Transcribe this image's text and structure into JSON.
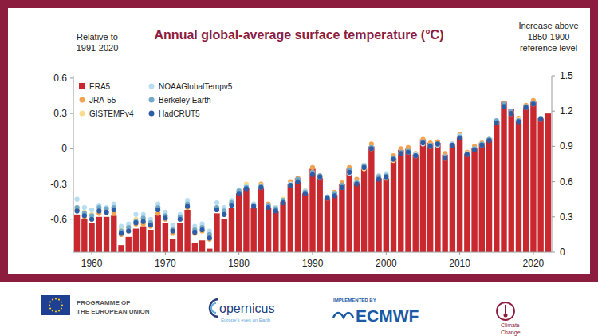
{
  "chart_data": {
    "type": "bar",
    "title": "Annual global-average surface temperature (°C)",
    "ylabel": [
      "Relative to",
      "1991-2020"
    ],
    "y2label": [
      "Increase above",
      "1850-1900",
      "reference level"
    ],
    "x": [
      1958,
      1959,
      1960,
      1961,
      1962,
      1963,
      1964,
      1965,
      1966,
      1967,
      1968,
      1969,
      1970,
      1971,
      1972,
      1973,
      1974,
      1975,
      1976,
      1977,
      1978,
      1979,
      1980,
      1981,
      1982,
      1983,
      1984,
      1985,
      1986,
      1987,
      1988,
      1989,
      1990,
      1991,
      1992,
      1993,
      1994,
      1995,
      1996,
      1997,
      1998,
      1999,
      2000,
      2001,
      2002,
      2003,
      2004,
      2005,
      2006,
      2007,
      2008,
      2009,
      2010,
      2011,
      2012,
      2013,
      2014,
      2015,
      2016,
      2017,
      2018,
      2019,
      2020,
      2021,
      2022
    ],
    "xlim": [
      1957.5,
      2022.5
    ],
    "xticks": [
      1960,
      1970,
      1980,
      1990,
      2000,
      2010,
      2020
    ],
    "ylim": [
      -0.88,
      0.62
    ],
    "yticks": [
      -0.6,
      -0.3,
      0,
      0.3,
      0.6
    ],
    "y2lim": [
      0,
      1.5
    ],
    "y2ticks": [
      0,
      0.3,
      0.6,
      0.9,
      1.2,
      1.5
    ],
    "grid": false,
    "legend": "upper left",
    "series": [
      {
        "name": "ERA5",
        "type": "bar",
        "color": "#c8282e",
        "marker": "square",
        "values": [
          -0.56,
          -0.6,
          -0.63,
          -0.58,
          -0.58,
          -0.57,
          -0.82,
          -0.75,
          -0.68,
          -0.66,
          -0.69,
          -0.56,
          -0.63,
          -0.77,
          -0.63,
          -0.52,
          -0.8,
          -0.78,
          -0.85,
          -0.55,
          -0.6,
          -0.5,
          -0.38,
          -0.33,
          -0.5,
          -0.33,
          -0.5,
          -0.53,
          -0.45,
          -0.3,
          -0.25,
          -0.38,
          -0.17,
          -0.25,
          -0.42,
          -0.39,
          -0.3,
          -0.17,
          -0.28,
          -0.17,
          0.02,
          -0.25,
          -0.25,
          -0.08,
          -0.01,
          0.0,
          -0.05,
          0.08,
          0.05,
          0.05,
          -0.05,
          0.04,
          0.1,
          -0.04,
          0.01,
          0.05,
          0.09,
          0.24,
          0.4,
          0.34,
          0.25,
          0.37,
          0.4,
          0.26,
          0.3
        ]
      },
      {
        "name": "JRA-55",
        "type": "scatter",
        "color": "#f2a34f",
        "marker": "circle",
        "values": [
          -0.52,
          -0.58,
          -0.6,
          -0.55,
          -0.54,
          -0.55,
          -0.73,
          -0.7,
          -0.64,
          -0.64,
          -0.66,
          -0.55,
          -0.6,
          -0.72,
          -0.6,
          -0.5,
          -0.72,
          -0.7,
          -0.77,
          -0.52,
          -0.56,
          -0.47,
          -0.36,
          -0.31,
          -0.48,
          -0.3,
          -0.47,
          -0.5,
          -0.44,
          -0.28,
          -0.25,
          -0.36,
          -0.16,
          -0.23,
          -0.41,
          -0.37,
          -0.29,
          -0.16,
          -0.26,
          -0.14,
          0.04,
          -0.23,
          -0.22,
          -0.06,
          0.0,
          0.01,
          -0.04,
          0.08,
          0.05,
          0.06,
          -0.04,
          0.04,
          0.12,
          -0.03,
          0.02,
          0.05,
          0.08,
          0.23,
          0.39,
          0.31,
          0.26,
          0.37,
          0.41,
          0.25,
          null
        ]
      },
      {
        "name": "GISTEMPv4",
        "type": "scatter",
        "color": "#f8dc8f",
        "marker": "circle",
        "values": [
          -0.5,
          -0.54,
          -0.56,
          -0.52,
          -0.53,
          -0.5,
          -0.68,
          -0.67,
          -0.6,
          -0.6,
          -0.64,
          -0.5,
          -0.57,
          -0.68,
          -0.59,
          -0.47,
          -0.68,
          -0.66,
          -0.74,
          -0.5,
          -0.54,
          -0.46,
          -0.37,
          -0.3,
          -0.47,
          -0.31,
          -0.48,
          -0.5,
          -0.43,
          -0.3,
          -0.27,
          -0.36,
          -0.2,
          -0.24,
          -0.42,
          -0.39,
          -0.32,
          -0.2,
          -0.29,
          -0.17,
          0.0,
          -0.25,
          -0.25,
          -0.1,
          -0.04,
          -0.02,
          -0.06,
          0.06,
          0.03,
          0.04,
          -0.08,
          0.03,
          0.1,
          -0.04,
          0.0,
          0.04,
          0.08,
          0.22,
          0.37,
          0.31,
          0.25,
          0.36,
          0.39,
          0.26,
          null
        ]
      },
      {
        "name": "NOAAGlobalTempv5",
        "type": "scatter",
        "color": "#b7def0",
        "marker": "circle",
        "values": [
          -0.43,
          -0.5,
          -0.52,
          -0.48,
          -0.5,
          -0.47,
          -0.66,
          -0.64,
          -0.56,
          -0.56,
          -0.6,
          -0.47,
          -0.54,
          -0.65,
          -0.56,
          -0.44,
          -0.66,
          -0.64,
          -0.7,
          -0.46,
          -0.5,
          -0.44,
          -0.35,
          -0.32,
          -0.47,
          -0.33,
          -0.48,
          -0.5,
          -0.44,
          -0.3,
          -0.27,
          -0.36,
          -0.21,
          -0.24,
          -0.41,
          -0.38,
          -0.33,
          -0.21,
          -0.28,
          -0.14,
          0.01,
          -0.23,
          -0.21,
          -0.08,
          -0.04,
          -0.03,
          -0.05,
          0.04,
          0.02,
          0.03,
          -0.07,
          0.04,
          0.11,
          -0.04,
          0.0,
          0.03,
          0.08,
          0.23,
          0.36,
          0.3,
          0.24,
          0.35,
          0.38,
          0.26,
          null
        ]
      },
      {
        "name": "Berkeley Earth",
        "type": "scatter",
        "color": "#72a9c9",
        "marker": "circle",
        "values": [
          -0.5,
          -0.55,
          -0.57,
          -0.5,
          -0.51,
          -0.5,
          -0.7,
          -0.67,
          -0.62,
          -0.59,
          -0.63,
          -0.5,
          -0.57,
          -0.69,
          -0.58,
          -0.47,
          -0.69,
          -0.67,
          -0.73,
          -0.5,
          -0.53,
          -0.46,
          -0.36,
          -0.33,
          -0.48,
          -0.32,
          -0.48,
          -0.51,
          -0.44,
          -0.31,
          -0.26,
          -0.37,
          -0.2,
          -0.23,
          -0.41,
          -0.38,
          -0.31,
          -0.18,
          -0.29,
          -0.15,
          0.01,
          -0.24,
          -0.23,
          -0.08,
          -0.03,
          -0.02,
          -0.06,
          0.06,
          0.03,
          0.04,
          -0.07,
          0.03,
          0.1,
          -0.05,
          0.0,
          0.04,
          0.08,
          0.24,
          0.38,
          0.32,
          0.24,
          0.36,
          0.39,
          0.26,
          null
        ]
      },
      {
        "name": "HadCRUT5",
        "type": "scatter",
        "color": "#2c5ea8",
        "marker": "circle",
        "values": [
          -0.53,
          -0.57,
          -0.6,
          -0.53,
          -0.54,
          -0.52,
          -0.72,
          -0.7,
          -0.63,
          -0.62,
          -0.65,
          -0.52,
          -0.59,
          -0.7,
          -0.6,
          -0.49,
          -0.71,
          -0.69,
          -0.76,
          -0.52,
          -0.56,
          -0.48,
          -0.38,
          -0.34,
          -0.49,
          -0.33,
          -0.5,
          -0.53,
          -0.46,
          -0.31,
          -0.28,
          -0.38,
          -0.22,
          -0.24,
          -0.42,
          -0.4,
          -0.33,
          -0.2,
          -0.3,
          -0.16,
          0.0,
          -0.26,
          -0.24,
          -0.09,
          -0.04,
          -0.03,
          -0.06,
          0.05,
          0.02,
          0.04,
          -0.08,
          0.03,
          0.09,
          -0.05,
          -0.01,
          0.03,
          0.07,
          0.22,
          0.36,
          0.3,
          0.23,
          0.35,
          0.38,
          0.25,
          null
        ]
      }
    ]
  },
  "footer": {
    "eu": [
      "PROGRAMME OF",
      "THE EUROPEAN UNION"
    ],
    "copernicus": {
      "name": "opernicus",
      "tagline": "Europe's eyes on Earth"
    },
    "ecmwf": {
      "note": "IMPLEMENTED BY",
      "name": "ECMWF"
    },
    "climate_change": [
      "Climate",
      "Change"
    ]
  }
}
